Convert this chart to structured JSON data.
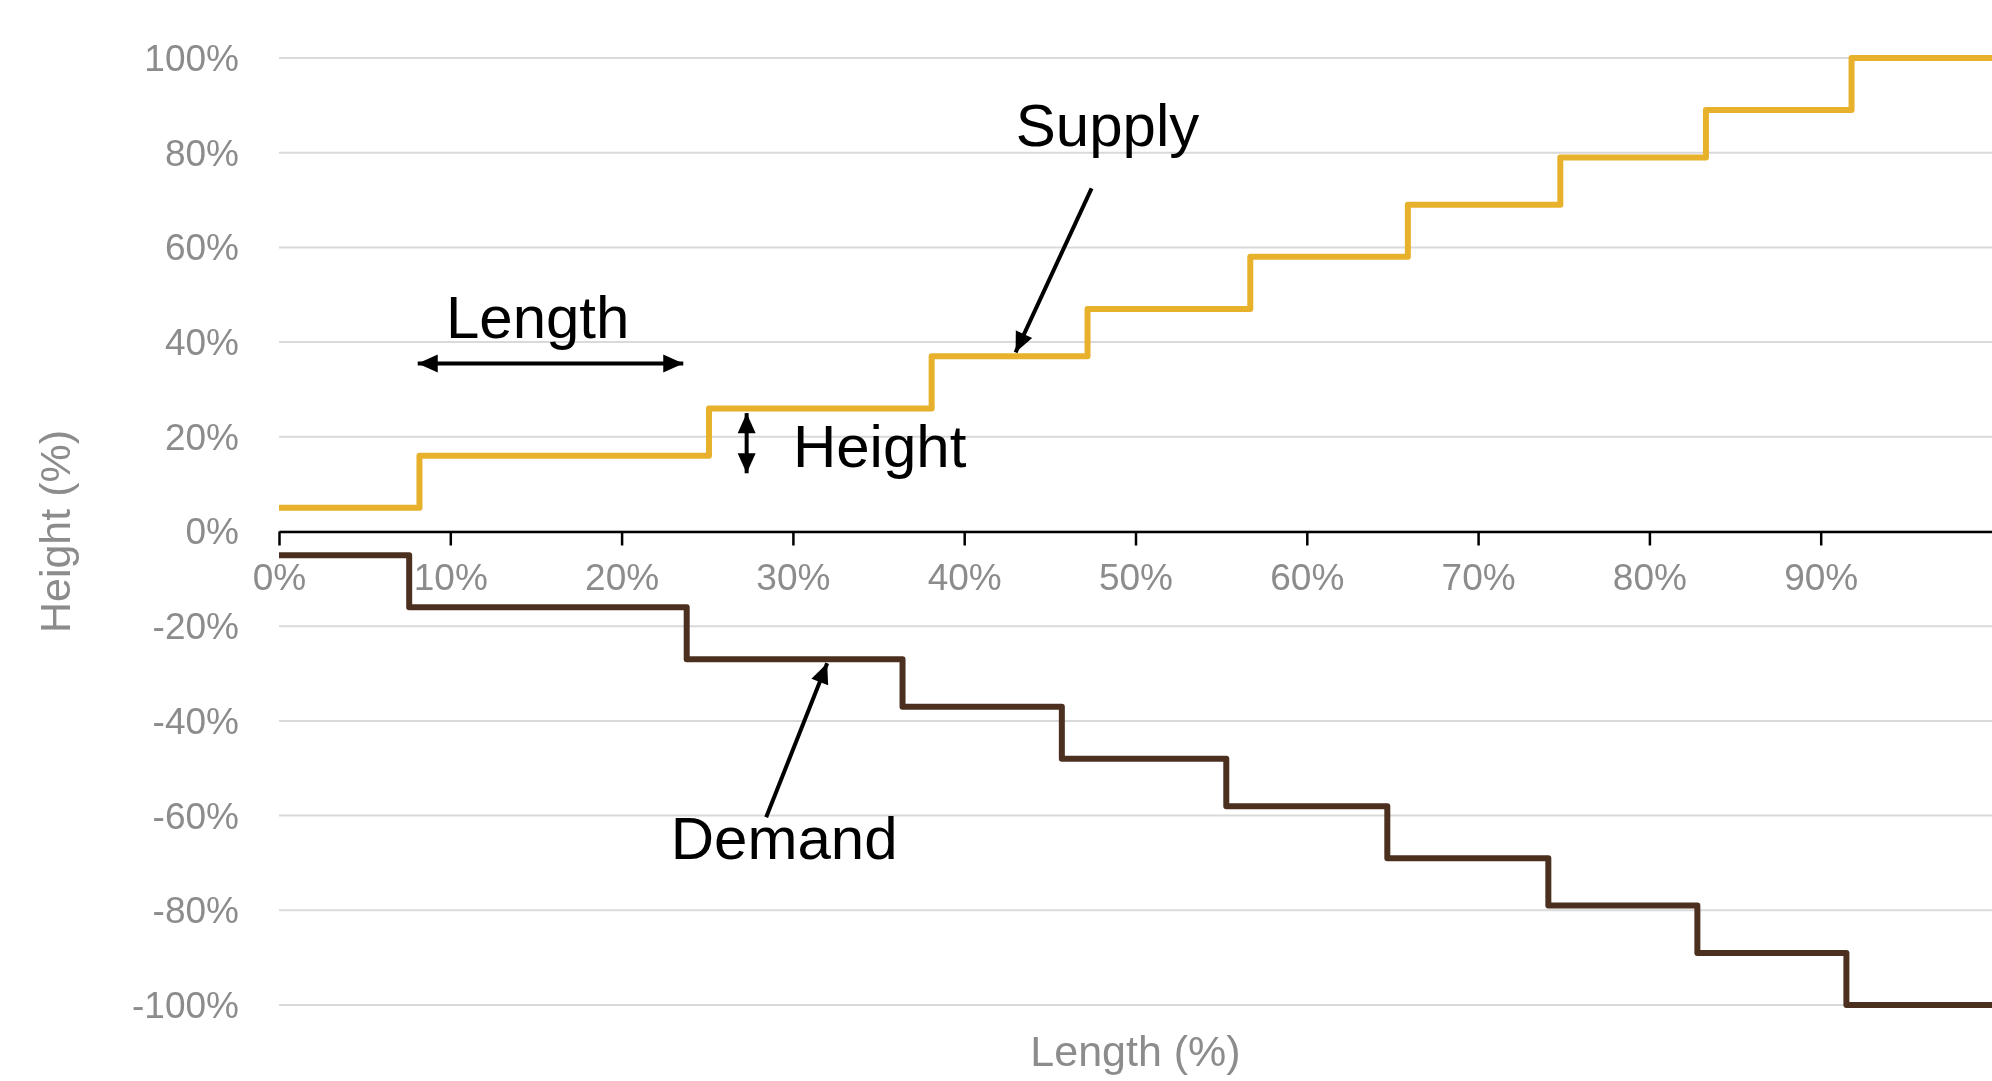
{
  "chart_data": {
    "type": "step",
    "xlabel": "Length (%)",
    "ylabel": "Height (%)",
    "xlim": [
      0,
      100
    ],
    "ylim": [
      -100,
      100
    ],
    "xticks": [
      {
        "value": 0,
        "label": "0%"
      },
      {
        "value": 10,
        "label": "10%"
      },
      {
        "value": 20,
        "label": "20%"
      },
      {
        "value": 30,
        "label": "30%"
      },
      {
        "value": 40,
        "label": "40%"
      },
      {
        "value": 50,
        "label": "50%"
      },
      {
        "value": 60,
        "label": "60%"
      },
      {
        "value": 70,
        "label": "70%"
      },
      {
        "value": 80,
        "label": "80%"
      },
      {
        "value": 90,
        "label": "90%"
      }
    ],
    "yticks": [
      {
        "value": -100,
        "label": "-100%"
      },
      {
        "value": -80,
        "label": "-80%"
      },
      {
        "value": -60,
        "label": "-60%"
      },
      {
        "value": -40,
        "label": "-40%"
      },
      {
        "value": -20,
        "label": "-20%"
      },
      {
        "value": 0,
        "label": "0%"
      },
      {
        "value": 20,
        "label": "20%"
      },
      {
        "value": 40,
        "label": "40%"
      },
      {
        "value": 60,
        "label": "60%"
      },
      {
        "value": 80,
        "label": "80%"
      },
      {
        "value": 100,
        "label": "100%"
      }
    ],
    "grid": "y",
    "series": [
      {
        "color": "#e8b12c",
        "x": [
          0,
          8.2,
          25.1,
          38.1,
          47.2,
          56.7,
          65.9,
          74.8,
          83.3,
          91.8,
          100
        ],
        "values": [
          5,
          16,
          26,
          37,
          47,
          58,
          69,
          79,
          89,
          100,
          100
        ]
      },
      {
        "color": "#4b3020",
        "x": [
          0,
          7.6,
          23.8,
          36.4,
          45.7,
          55.3,
          64.7,
          74.1,
          82.8,
          91.5,
          100
        ],
        "values": [
          -5,
          -16,
          -27,
          -37,
          -48,
          -58,
          -69,
          -79,
          -89,
          -100,
          -100
        ]
      }
    ],
    "annotations": [
      {
        "text": "Supply",
        "x": 43,
        "y": 37
      },
      "Length",
      "Height",
      {
        "text": "Demand",
        "x": 32,
        "y": -27
      }
    ]
  }
}
